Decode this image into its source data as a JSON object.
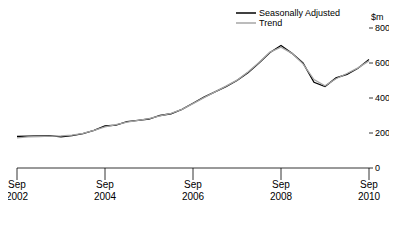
{
  "chart_data": {
    "type": "line",
    "y_label": "$m",
    "categories": [
      "Sep 2002",
      null,
      null,
      null,
      null,
      null,
      null,
      null,
      "Sep 2004",
      null,
      null,
      null,
      null,
      null,
      null,
      null,
      "Sep 2006",
      null,
      null,
      null,
      null,
      null,
      null,
      null,
      "Sep 2008",
      null,
      null,
      null,
      null,
      null,
      null,
      null,
      "Sep 2010"
    ],
    "series": [
      {
        "name": "Seasonally Adjusted",
        "color": "#000000",
        "values": [
          180,
          182,
          183,
          185,
          178,
          185,
          197,
          215,
          240,
          245,
          265,
          272,
          280,
          300,
          310,
          335,
          370,
          405,
          435,
          465,
          500,
          545,
          600,
          660,
          700,
          655,
          600,
          490,
          465,
          515,
          535,
          570,
          620
        ]
      },
      {
        "name": "Trend",
        "color": "#a6a6a6",
        "values": [
          172,
          178,
          180,
          182,
          183,
          188,
          198,
          215,
          235,
          248,
          262,
          272,
          282,
          298,
          312,
          335,
          368,
          402,
          435,
          468,
          502,
          548,
          603,
          662,
          690,
          655,
          595,
          505,
          470,
          510,
          540,
          572,
          612
        ]
      }
    ],
    "ylim": [
      0,
      800
    ],
    "yticks": [
      0,
      200,
      400,
      600,
      800
    ],
    "legend": "top-right",
    "grid": false
  }
}
